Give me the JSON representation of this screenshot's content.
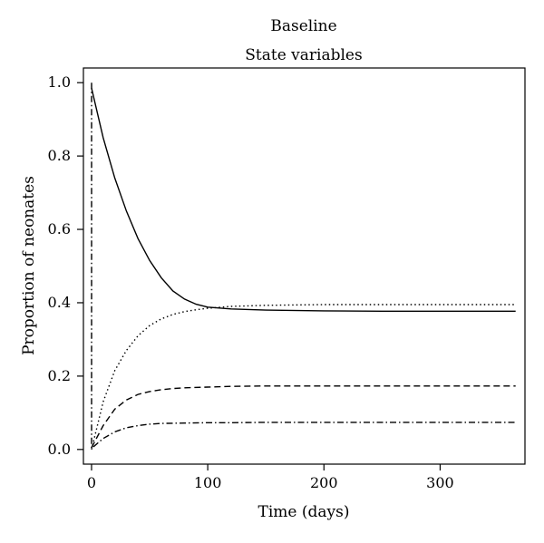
{
  "chart_data": {
    "type": "line",
    "title": "Baseline",
    "subtitle": "State variables",
    "xlabel": "Time (days)",
    "ylabel": "Proportion of neonates",
    "xlim": [
      -7,
      373
    ],
    "ylim": [
      -0.04,
      1.04
    ],
    "xticks": [
      0,
      100,
      200,
      300
    ],
    "xtick_labels": [
      "0",
      "100",
      "200",
      "300"
    ],
    "yticks": [
      0.0,
      0.2,
      0.4,
      0.6,
      0.8,
      1.0
    ],
    "ytick_labels": [
      "0.0",
      "0.2",
      "0.4",
      "0.6",
      "0.8",
      "1.0"
    ],
    "grid": false,
    "legend": "none",
    "series": [
      {
        "style": "solid",
        "x": [
          0,
          10,
          20,
          30,
          40,
          50,
          60,
          70,
          80,
          90,
          100,
          120,
          150,
          200,
          250,
          300,
          365
        ],
        "y": [
          0.985,
          0.85,
          0.74,
          0.65,
          0.575,
          0.515,
          0.468,
          0.432,
          0.41,
          0.396,
          0.388,
          0.383,
          0.38,
          0.378,
          0.377,
          0.377,
          0.377
        ]
      },
      {
        "style": "dotted",
        "x": [
          0,
          10,
          20,
          30,
          40,
          50,
          60,
          70,
          80,
          90,
          100,
          120,
          150,
          200,
          250,
          300,
          365
        ],
        "y": [
          0.0,
          0.13,
          0.215,
          0.27,
          0.31,
          0.338,
          0.356,
          0.368,
          0.376,
          0.381,
          0.385,
          0.39,
          0.393,
          0.395,
          0.395,
          0.395,
          0.395
        ]
      },
      {
        "style": "dashed",
        "x": [
          0,
          10,
          20,
          30,
          40,
          50,
          60,
          70,
          80,
          100,
          120,
          150,
          200,
          250,
          300,
          365
        ],
        "y": [
          0.005,
          0.065,
          0.11,
          0.135,
          0.15,
          0.158,
          0.163,
          0.166,
          0.168,
          0.17,
          0.172,
          0.173,
          0.173,
          0.173,
          0.173,
          0.173
        ]
      },
      {
        "style": "dashdot",
        "x": [
          0,
          0,
          10,
          20,
          30,
          40,
          50,
          60,
          80,
          100,
          120,
          150,
          200,
          250,
          300,
          365
        ],
        "y": [
          1.0,
          0.003,
          0.03,
          0.048,
          0.059,
          0.065,
          0.069,
          0.071,
          0.072,
          0.073,
          0.073,
          0.074,
          0.074,
          0.074,
          0.074,
          0.074
        ]
      }
    ]
  }
}
